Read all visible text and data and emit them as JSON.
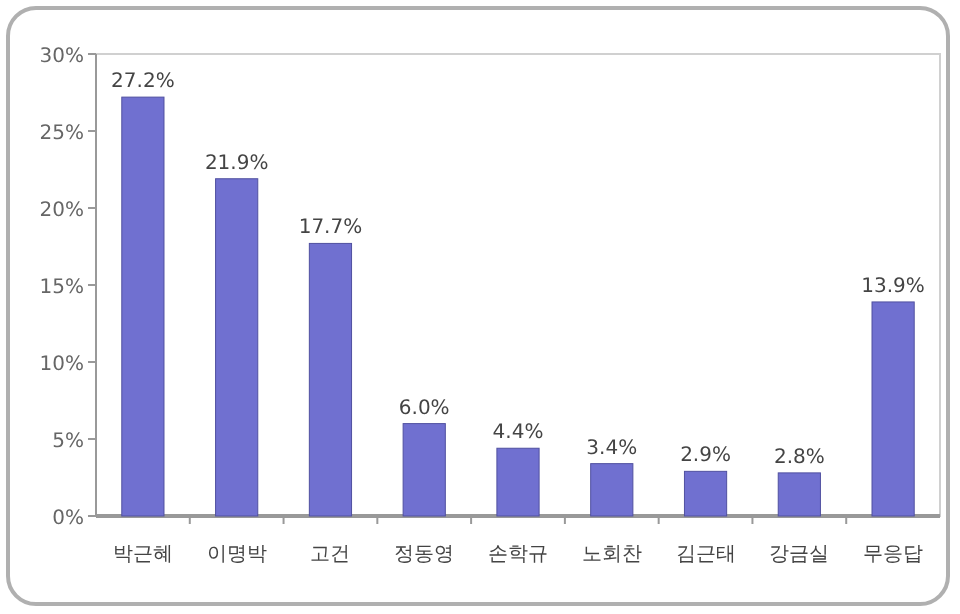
{
  "chart_data": {
    "type": "bar",
    "categories": [
      "박근혜",
      "이명박",
      "고건",
      "정동영",
      "손학규",
      "노회찬",
      "김근태",
      "강금실",
      "무응답"
    ],
    "values": [
      27.2,
      21.9,
      17.7,
      6.0,
      4.4,
      3.4,
      2.9,
      2.8,
      13.9
    ],
    "value_labels": [
      "27.2%",
      "21.9%",
      "17.7%",
      "6.0%",
      "4.4%",
      "3.4%",
      "2.9%",
      "2.8%",
      "13.9%"
    ],
    "color": "#7070d0",
    "ylim": [
      0,
      30
    ],
    "yticks": [
      {
        "value": 0,
        "label": "0%"
      },
      {
        "value": 5,
        "label": "5%"
      },
      {
        "value": 10,
        "label": "10%"
      },
      {
        "value": 15,
        "label": "15%"
      },
      {
        "value": 20,
        "label": "20%"
      },
      {
        "value": 25,
        "label": "25%"
      },
      {
        "value": 30,
        "label": "30%"
      }
    ],
    "grid": false
  }
}
